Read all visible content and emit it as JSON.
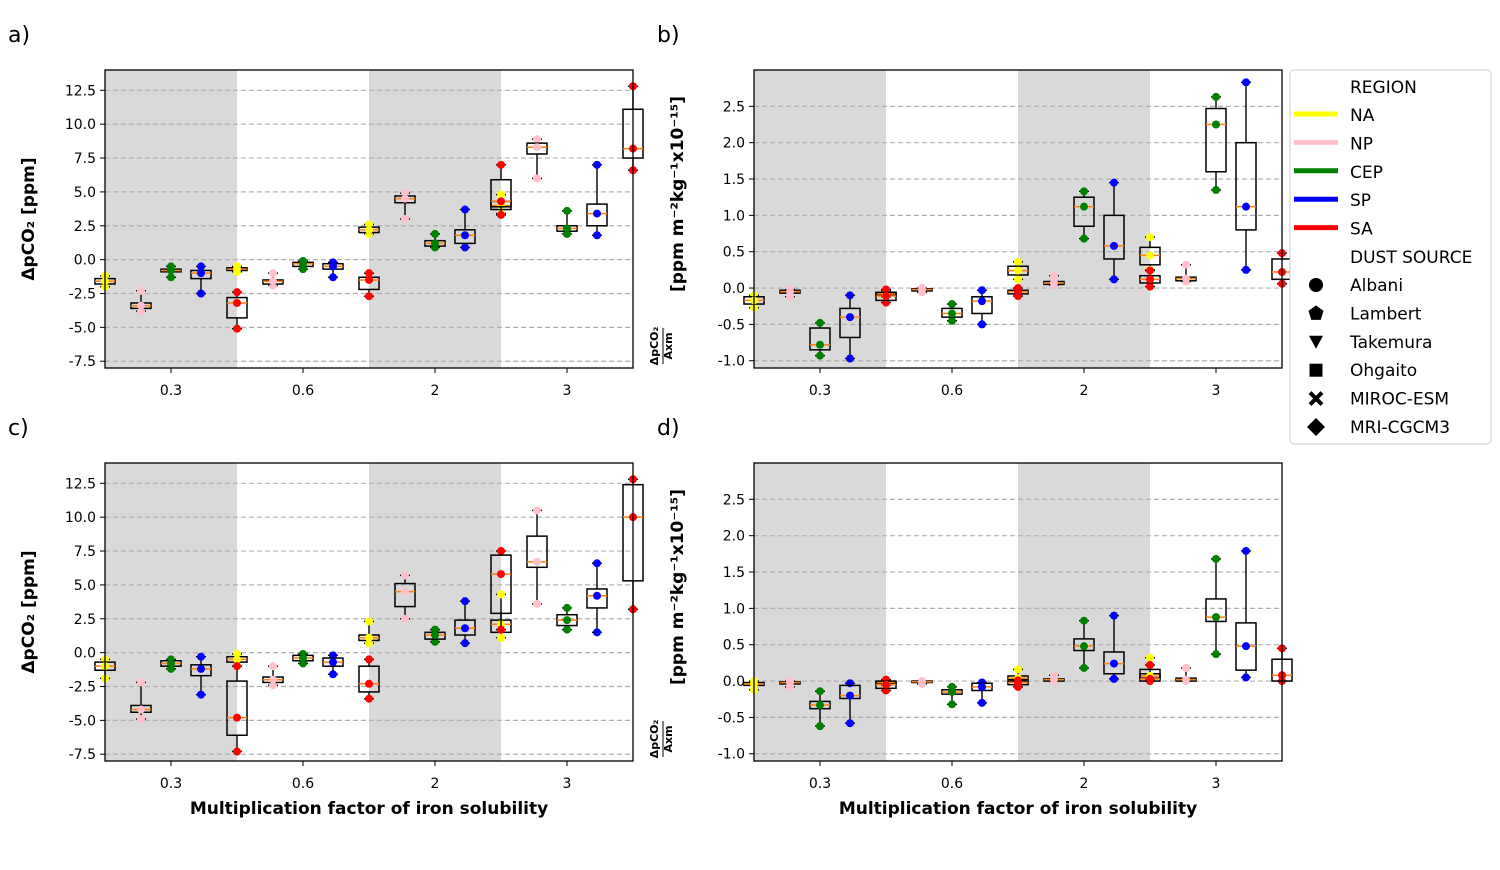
{
  "legend": {
    "region_title": "REGION",
    "regions": [
      {
        "name": "NA",
        "color": "#ffff00"
      },
      {
        "name": "NP",
        "color": "#ffc0cb"
      },
      {
        "name": "CEP",
        "color": "#008000"
      },
      {
        "name": "SP",
        "color": "#0000ff"
      },
      {
        "name": "SA",
        "color": "#ff0000"
      }
    ],
    "dust_title": "DUST SOURCE",
    "dust_sources": [
      {
        "name": "Albani",
        "marker": "circle"
      },
      {
        "name": "Lambert",
        "marker": "pentagon"
      },
      {
        "name": "Takemura",
        "marker": "triangle-down"
      },
      {
        "name": "Ohgaito",
        "marker": "square"
      },
      {
        "name": "MIROC-ESM",
        "marker": "x"
      },
      {
        "name": "MRI-CGCM3",
        "marker": "diamond"
      }
    ]
  },
  "chart_data": [
    {
      "panel": "a)",
      "type": "box",
      "categories": [
        "0.3",
        "0.6",
        "2",
        "3"
      ],
      "xlabel": "",
      "ylabel": "ΔpCO₂ [ppm]",
      "ylim": [
        -8,
        14
      ],
      "yticks": [
        -7.5,
        -5.0,
        -2.5,
        0.0,
        2.5,
        5.0,
        7.5,
        10.0,
        12.5
      ],
      "shaded_categories": [
        "0.3",
        "2"
      ],
      "grid": "horizontal dashed",
      "series": [
        {
          "name": "NA",
          "boxes": [
            {
              "q1": -1.8,
              "median": -1.6,
              "q3": -1.4,
              "min": -2.0,
              "max": -1.2
            },
            {
              "q1": -0.8,
              "median": -0.7,
              "q3": -0.6,
              "min": -0.9,
              "max": -0.5
            },
            {
              "q1": 2.0,
              "median": 2.2,
              "q3": 2.4,
              "min": 1.9,
              "max": 2.6
            },
            {
              "q1": 3.7,
              "median": 4.0,
              "q3": 4.3,
              "min": 3.4,
              "max": 4.8
            }
          ]
        },
        {
          "name": "NP",
          "boxes": [
            {
              "q1": -3.6,
              "median": -3.4,
              "q3": -3.2,
              "min": -3.8,
              "max": -2.3
            },
            {
              "q1": -1.8,
              "median": -1.6,
              "q3": -1.5,
              "min": -1.9,
              "max": -1.0
            },
            {
              "q1": 4.2,
              "median": 4.5,
              "q3": 4.7,
              "min": 3.0,
              "max": 4.9
            },
            {
              "q1": 7.8,
              "median": 8.3,
              "q3": 8.6,
              "min": 6.0,
              "max": 8.9
            }
          ]
        },
        {
          "name": "CEP",
          "boxes": [
            {
              "q1": -0.9,
              "median": -0.8,
              "q3": -0.7,
              "min": -1.3,
              "max": -0.5
            },
            {
              "q1": -0.5,
              "median": -0.3,
              "q3": -0.2,
              "min": -0.7,
              "max": -0.1
            },
            {
              "q1": 1.0,
              "median": 1.2,
              "q3": 1.4,
              "min": 0.9,
              "max": 1.9
            },
            {
              "q1": 2.1,
              "median": 2.3,
              "q3": 2.5,
              "min": 1.9,
              "max": 3.6
            }
          ]
        },
        {
          "name": "SP",
          "boxes": [
            {
              "q1": -1.4,
              "median": -1.0,
              "q3": -0.8,
              "min": -2.5,
              "max": -0.5
            },
            {
              "q1": -0.7,
              "median": -0.5,
              "q3": -0.3,
              "min": -1.3,
              "max": -0.2
            },
            {
              "q1": 1.2,
              "median": 1.8,
              "q3": 2.2,
              "min": 0.9,
              "max": 3.7
            },
            {
              "q1": 2.5,
              "median": 3.4,
              "q3": 4.1,
              "min": 1.8,
              "max": 7.0
            }
          ]
        },
        {
          "name": "SA",
          "boxes": [
            {
              "q1": -4.3,
              "median": -3.2,
              "q3": -2.8,
              "min": -5.1,
              "max": -2.4
            },
            {
              "q1": -2.2,
              "median": -1.5,
              "q3": -1.3,
              "min": -2.7,
              "max": -1.0
            },
            {
              "q1": 3.9,
              "median": 4.3,
              "q3": 5.9,
              "min": 3.3,
              "max": 7.0
            },
            {
              "q1": 7.5,
              "median": 8.2,
              "q3": 11.1,
              "min": 6.6,
              "max": 12.8
            }
          ]
        }
      ]
    },
    {
      "panel": "b)",
      "type": "box",
      "categories": [
        "0.3",
        "0.6",
        "2",
        "3"
      ],
      "xlabel": "",
      "ylabel": "ΔpCO₂/Axm [ppm m⁻²kg⁻¹x10⁻¹⁵]",
      "ylim": [
        -1.1,
        3.0
      ],
      "yticks": [
        -1.0,
        -0.5,
        0.0,
        0.5,
        1.0,
        1.5,
        2.0,
        2.5
      ],
      "shaded_categories": [
        "0.3",
        "2"
      ],
      "grid": "horizontal dashed",
      "series": [
        {
          "name": "NA",
          "boxes": [
            {
              "q1": -0.22,
              "median": -0.17,
              "q3": -0.12,
              "min": -0.27,
              "max": -0.1
            },
            {
              "q1": -0.1,
              "median": -0.08,
              "q3": -0.06,
              "min": -0.12,
              "max": -0.04
            },
            {
              "q1": 0.18,
              "median": 0.24,
              "q3": 0.3,
              "min": 0.12,
              "max": 0.36
            },
            {
              "q1": 0.32,
              "median": 0.45,
              "q3": 0.56,
              "min": 0.25,
              "max": 0.7
            }
          ]
        },
        {
          "name": "NP",
          "boxes": [
            {
              "q1": -0.07,
              "median": -0.05,
              "q3": -0.03,
              "min": -0.12,
              "max": -0.02
            },
            {
              "q1": -0.04,
              "median": -0.02,
              "q3": -0.01,
              "min": -0.06,
              "max": 0.0
            },
            {
              "q1": 0.05,
              "median": 0.07,
              "q3": 0.09,
              "min": 0.04,
              "max": 0.17
            },
            {
              "q1": 0.1,
              "median": 0.13,
              "q3": 0.15,
              "min": 0.09,
              "max": 0.32
            }
          ]
        },
        {
          "name": "CEP",
          "boxes": [
            {
              "q1": -0.85,
              "median": -0.78,
              "q3": -0.55,
              "min": -0.93,
              "max": -0.48
            },
            {
              "q1": -0.4,
              "median": -0.35,
              "q3": -0.28,
              "min": -0.45,
              "max": -0.22
            },
            {
              "q1": 0.85,
              "median": 1.12,
              "q3": 1.25,
              "min": 0.68,
              "max": 1.33
            },
            {
              "q1": 1.6,
              "median": 2.25,
              "q3": 2.47,
              "min": 1.35,
              "max": 2.63
            }
          ]
        },
        {
          "name": "SP",
          "boxes": [
            {
              "q1": -0.68,
              "median": -0.4,
              "q3": -0.28,
              "min": -0.97,
              "max": -0.1
            },
            {
              "q1": -0.35,
              "median": -0.18,
              "q3": -0.12,
              "min": -0.5,
              "max": -0.03
            },
            {
              "q1": 0.4,
              "median": 0.58,
              "q3": 1.0,
              "min": 0.12,
              "max": 1.45
            },
            {
              "q1": 0.8,
              "median": 1.12,
              "q3": 2.0,
              "min": 0.25,
              "max": 2.83
            }
          ]
        },
        {
          "name": "SA",
          "boxes": [
            {
              "q1": -0.17,
              "median": -0.11,
              "q3": -0.06,
              "min": -0.2,
              "max": -0.02
            },
            {
              "q1": -0.08,
              "median": -0.05,
              "q3": -0.03,
              "min": -0.11,
              "max": 0.0
            },
            {
              "q1": 0.07,
              "median": 0.12,
              "q3": 0.17,
              "min": 0.02,
              "max": 0.24
            },
            {
              "q1": 0.12,
              "median": 0.22,
              "q3": 0.4,
              "min": 0.06,
              "max": 0.48
            }
          ]
        }
      ]
    },
    {
      "panel": "c)",
      "type": "box",
      "categories": [
        "0.3",
        "0.6",
        "2",
        "3"
      ],
      "xlabel": "Multiplication factor of iron solubility",
      "ylabel": "ΔpCO₂ [ppm]",
      "ylim": [
        -8,
        14
      ],
      "yticks": [
        -7.5,
        -5.0,
        -2.5,
        0.0,
        2.5,
        5.0,
        7.5,
        10.0,
        12.5
      ],
      "shaded_categories": [
        "0.3",
        "2"
      ],
      "grid": "horizontal dashed",
      "series": [
        {
          "name": "NA",
          "boxes": [
            {
              "q1": -1.3,
              "median": -1.0,
              "q3": -0.7,
              "min": -1.9,
              "max": -0.5
            },
            {
              "q1": -0.7,
              "median": -0.5,
              "q3": -0.3,
              "min": -1.0,
              "max": -0.1
            },
            {
              "q1": 0.9,
              "median": 1.1,
              "q3": 1.3,
              "min": 0.7,
              "max": 2.3
            },
            {
              "q1": 1.5,
              "median": 2.1,
              "q3": 2.4,
              "min": 1.1,
              "max": 4.3
            }
          ]
        },
        {
          "name": "NP",
          "boxes": [
            {
              "q1": -4.4,
              "median": -4.2,
              "q3": -3.9,
              "min": -4.9,
              "max": -2.2
            },
            {
              "q1": -2.2,
              "median": -2.0,
              "q3": -1.8,
              "min": -2.4,
              "max": -1.0
            },
            {
              "q1": 3.4,
              "median": 4.5,
              "q3": 5.1,
              "min": 2.5,
              "max": 5.7
            },
            {
              "q1": 6.3,
              "median": 6.7,
              "q3": 8.6,
              "min": 3.6,
              "max": 10.5
            }
          ]
        },
        {
          "name": "CEP",
          "boxes": [
            {
              "q1": -1.0,
              "median": -0.8,
              "q3": -0.6,
              "min": -1.2,
              "max": -0.5
            },
            {
              "q1": -0.6,
              "median": -0.4,
              "q3": -0.2,
              "min": -0.8,
              "max": -0.1
            },
            {
              "q1": 1.0,
              "median": 1.3,
              "q3": 1.5,
              "min": 0.8,
              "max": 1.7
            },
            {
              "q1": 2.0,
              "median": 2.4,
              "q3": 2.8,
              "min": 1.7,
              "max": 3.3
            }
          ]
        },
        {
          "name": "SP",
          "boxes": [
            {
              "q1": -1.7,
              "median": -1.2,
              "q3": -0.9,
              "min": -3.1,
              "max": -0.3
            },
            {
              "q1": -1.0,
              "median": -0.7,
              "q3": -0.4,
              "min": -1.6,
              "max": -0.2
            },
            {
              "q1": 1.3,
              "median": 1.8,
              "q3": 2.4,
              "min": 0.7,
              "max": 3.8
            },
            {
              "q1": 3.3,
              "median": 4.2,
              "q3": 4.7,
              "min": 1.5,
              "max": 6.6
            }
          ]
        },
        {
          "name": "SA",
          "boxes": [
            {
              "q1": -6.1,
              "median": -4.8,
              "q3": -2.1,
              "min": -7.3,
              "max": -1.0
            },
            {
              "q1": -2.9,
              "median": -2.3,
              "q3": -1.0,
              "min": -3.4,
              "max": -0.5
            },
            {
              "q1": 2.9,
              "median": 5.8,
              "q3": 7.2,
              "min": 1.7,
              "max": 7.5
            },
            {
              "q1": 5.3,
              "median": 10.0,
              "q3": 12.4,
              "min": 3.2,
              "max": 12.8
            }
          ]
        }
      ]
    },
    {
      "panel": "d)",
      "type": "box",
      "categories": [
        "0.3",
        "0.6",
        "2",
        "3"
      ],
      "xlabel": "Multiplication factor of iron solubility",
      "ylabel": "ΔpCO₂/Axm [ppm m⁻²kg⁻¹x10⁻¹⁵]",
      "ylim": [
        -1.1,
        3.0
      ],
      "yticks": [
        -1.0,
        -0.5,
        0.0,
        0.5,
        1.0,
        1.5,
        2.0,
        2.5
      ],
      "shaded_categories": [
        "0.3",
        "2"
      ],
      "grid": "horizontal dashed",
      "series": [
        {
          "name": "NA",
          "boxes": [
            {
              "q1": -0.06,
              "median": -0.04,
              "q3": -0.02,
              "min": -0.12,
              "max": 0.0
            },
            {
              "q1": -0.03,
              "median": -0.02,
              "q3": -0.01,
              "min": -0.06,
              "max": 0.0
            },
            {
              "q1": 0.02,
              "median": 0.04,
              "q3": 0.07,
              "min": 0.0,
              "max": 0.16
            },
            {
              "q1": 0.04,
              "median": 0.07,
              "q3": 0.1,
              "min": 0.02,
              "max": 0.32
            }
          ]
        },
        {
          "name": "NP",
          "boxes": [
            {
              "q1": -0.04,
              "median": -0.02,
              "q3": -0.01,
              "min": -0.08,
              "max": 0.0
            },
            {
              "q1": -0.02,
              "median": -0.01,
              "q3": 0.0,
              "min": -0.04,
              "max": 0.0
            },
            {
              "q1": 0.0,
              "median": 0.02,
              "q3": 0.03,
              "min": 0.0,
              "max": 0.08
            },
            {
              "q1": 0.0,
              "median": 0.02,
              "q3": 0.04,
              "min": 0.0,
              "max": 0.18
            }
          ]
        },
        {
          "name": "CEP",
          "boxes": [
            {
              "q1": -0.38,
              "median": -0.33,
              "q3": -0.28,
              "min": -0.62,
              "max": -0.14
            },
            {
              "q1": -0.18,
              "median": -0.15,
              "q3": -0.12,
              "min": -0.32,
              "max": -0.08
            },
            {
              "q1": 0.42,
              "median": 0.48,
              "q3": 0.58,
              "min": 0.18,
              "max": 0.83
            },
            {
              "q1": 0.82,
              "median": 0.88,
              "q3": 1.13,
              "min": 0.37,
              "max": 1.68
            }
          ]
        },
        {
          "name": "SP",
          "boxes": [
            {
              "q1": -0.24,
              "median": -0.2,
              "q3": -0.06,
              "min": -0.58,
              "max": -0.03
            },
            {
              "q1": -0.13,
              "median": -0.08,
              "q3": -0.03,
              "min": -0.3,
              "max": -0.02
            },
            {
              "q1": 0.1,
              "median": 0.24,
              "q3": 0.4,
              "min": 0.03,
              "max": 0.9
            },
            {
              "q1": 0.15,
              "median": 0.48,
              "q3": 0.8,
              "min": 0.05,
              "max": 1.79
            }
          ]
        },
        {
          "name": "SA",
          "boxes": [
            {
              "q1": -0.1,
              "median": -0.05,
              "q3": 0.0,
              "min": -0.13,
              "max": 0.02
            },
            {
              "q1": -0.05,
              "median": -0.02,
              "q3": 0.0,
              "min": -0.08,
              "max": 0.01
            },
            {
              "q1": 0.0,
              "median": 0.03,
              "q3": 0.16,
              "min": 0.0,
              "max": 0.22
            },
            {
              "q1": 0.0,
              "median": 0.08,
              "q3": 0.3,
              "min": 0.0,
              "max": 0.45
            }
          ]
        }
      ]
    }
  ]
}
